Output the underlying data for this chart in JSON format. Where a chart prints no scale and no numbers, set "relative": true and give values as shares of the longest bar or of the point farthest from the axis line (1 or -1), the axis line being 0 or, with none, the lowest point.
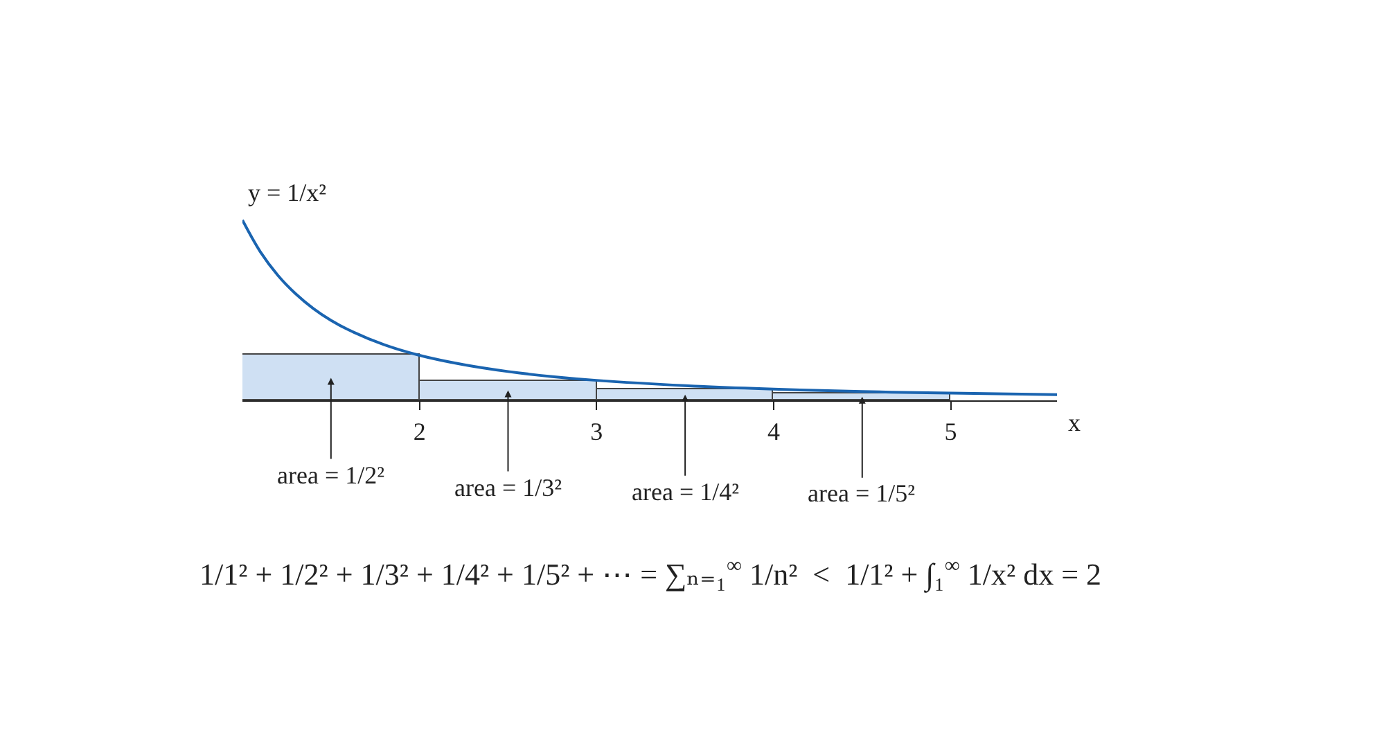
{
  "chart_data": {
    "type": "histogram",
    "relative": true,
    "bins": [
      1,
      2,
      3,
      4,
      5
    ],
    "values": [
      0.25,
      0.111,
      0.0625,
      0.04
    ],
    "color": "#cfe0f3",
    "series": [
      {
        "type": "line",
        "color": "#1a64b0",
        "x": [
          1,
          1.1,
          1.2,
          1.3,
          1.4,
          1.5,
          1.6,
          1.8,
          2,
          2.25,
          2.5,
          2.75,
          3,
          3.5,
          4,
          4.5,
          5,
          5.6
        ],
        "values": [
          1,
          0.826,
          0.694,
          0.592,
          0.51,
          0.444,
          0.391,
          0.309,
          0.25,
          0.198,
          0.16,
          0.132,
          0.111,
          0.082,
          0.0625,
          0.049,
          0.04,
          0.032
        ]
      }
    ],
    "xlabel": "x",
    "xlim": [
      1,
      5.6
    ],
    "xticks": [
      2,
      3,
      4,
      5
    ],
    "annotations": [
      {
        "text": "y = 1/x²",
        "x": 1,
        "y": 1
      },
      "area = 1/2²",
      "area = 1/3²",
      "area = 1/4²",
      "area = 1/5²",
      "1/1² + 1/2² + 1/3² + 1/4² + 1/5² + ⋯ = ∑ₙ₌₁$^{∞}$ 1/n²  <  1/1² + ∫₁$^{∞}$ 1/x² dx = 2"
    ]
  }
}
